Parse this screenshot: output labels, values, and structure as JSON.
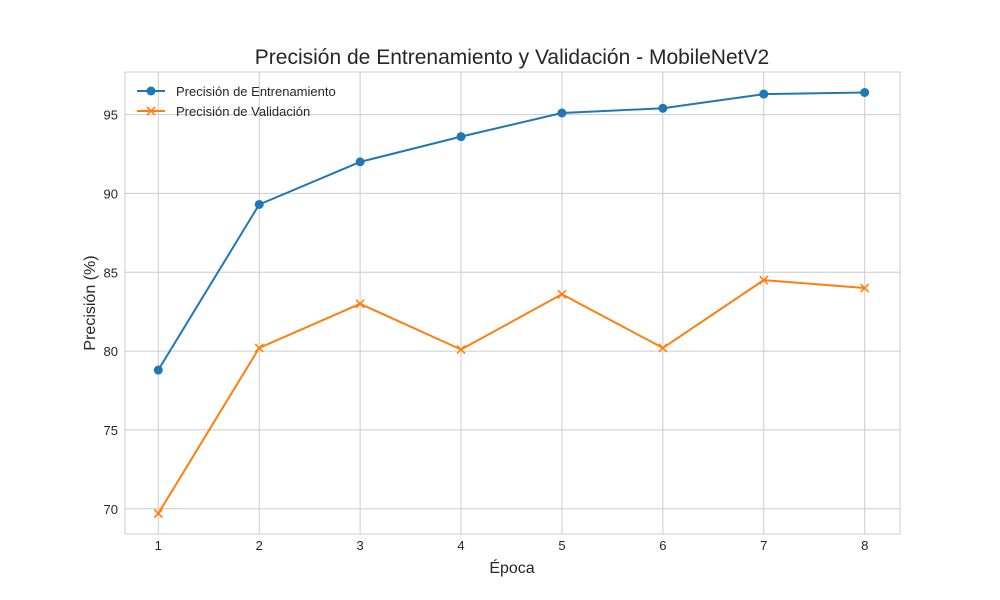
{
  "chart_data": {
    "type": "line",
    "title": "Precisión de Entrenamiento y Validación - MobileNetV2",
    "xlabel": "Época",
    "ylabel": "Precisión (%)",
    "x": [
      1,
      2,
      3,
      4,
      5,
      6,
      7,
      8
    ],
    "xticks": [
      "1",
      "2",
      "3",
      "4",
      "5",
      "6",
      "7",
      "8"
    ],
    "yticks": [
      "70",
      "75",
      "80",
      "85",
      "90",
      "95"
    ],
    "xlim": [
      0.67,
      8.35
    ],
    "ylim": [
      68.4,
      97.7
    ],
    "grid": true,
    "legend_position": "top-left",
    "series": [
      {
        "name": "Precisión de Entrenamiento",
        "color": "#1f77b4",
        "marker": "circle",
        "values": [
          78.8,
          89.3,
          92.0,
          93.6,
          95.1,
          95.4,
          96.3,
          96.4
        ]
      },
      {
        "name": "Precisión de Validación",
        "color": "#ff7f0e",
        "marker": "x",
        "values": [
          69.7,
          80.2,
          83.0,
          80.1,
          83.6,
          80.2,
          84.5,
          84.0
        ]
      }
    ]
  }
}
